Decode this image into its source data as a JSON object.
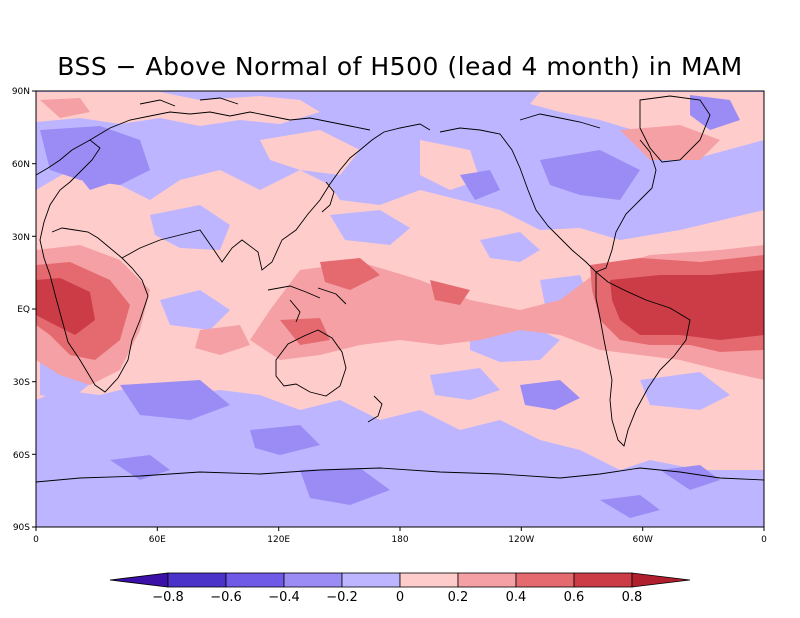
{
  "title": "BSS − Above Normal of H500 (lead 4 month) in MAM",
  "lat_labels": [
    "90N",
    "60N",
    "30N",
    "EQ",
    "30S",
    "60S",
    "90S"
  ],
  "lon_labels": [
    "0",
    "60E",
    "120E",
    "180",
    "120W",
    "60W",
    "0"
  ],
  "colorbar": {
    "labels": [
      "−0.8",
      "−0.6",
      "−0.4",
      "−0.2",
      "0",
      "0.2",
      "0.4",
      "0.6",
      "0.8"
    ],
    "colors": [
      "#3a10a8",
      "#4b32c8",
      "#6e5ae6",
      "#9a8cf4",
      "#bdb5ff",
      "#ffcccc",
      "#f4a0a4",
      "#e46a70",
      "#cc3c46",
      "#b0202c"
    ]
  },
  "colors": {
    "background_field": "#bdb5ff",
    "coastline": "#000000"
  }
}
